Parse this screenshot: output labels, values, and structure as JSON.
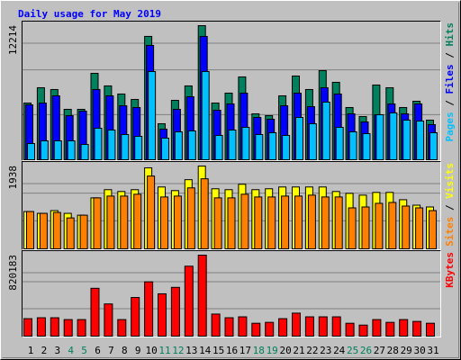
{
  "chart_data": [
    {
      "type": "bar",
      "title": "Daily usage for May 2019",
      "title_color": "#0000ff",
      "ylim": [
        0,
        12214
      ],
      "yticks": [
        12214
      ],
      "legend_separator": " / ",
      "series": [
        {
          "name": "Hits",
          "color": "#00805c",
          "values": [
            5166,
            6560,
            6396,
            4592,
            4592,
            7872,
            6724,
            5986,
            5494,
            11234,
            3280,
            5412,
            6724,
            12214,
            5166,
            6068,
            7544,
            4182,
            4018,
            5822,
            7626,
            6396,
            8118,
            7052,
            4756,
            3936,
            6806,
            6560,
            4756,
            5330,
            3608
          ]
        },
        {
          "name": "Files",
          "color": "#0000ff",
          "values": [
            5002,
            5166,
            5822,
            4018,
            4428,
            6396,
            5822,
            4920,
            4756,
            10414,
            2788,
            4592,
            5740,
            11234,
            4510,
            5084,
            6068,
            3854,
            3690,
            4920,
            6068,
            4838,
            6560,
            5986,
            4182,
            3444,
            4100,
            5084,
            4182,
            5084,
            3198
          ]
        },
        {
          "name": "Pages",
          "color": "#00c0ff",
          "values": [
            1476,
            1722,
            1722,
            1722,
            1394,
            2870,
            2706,
            2296,
            2132,
            8036,
            1968,
            2542,
            2624,
            8036,
            2214,
            2706,
            2952,
            2296,
            2460,
            2214,
            3854,
            3280,
            5248,
            2952,
            2542,
            2378,
            4100,
            4264,
            3608,
            3526,
            2460
          ]
        }
      ]
    },
    {
      "type": "bar",
      "ylim": [
        0,
        1938
      ],
      "yticks": [
        1938
      ],
      "legend_separator": " / ",
      "series": [
        {
          "name": "Visits",
          "color": "#ffff00",
          "values": [
            873,
            831,
            895,
            831,
            788,
            1193,
            1385,
            1342,
            1385,
            1896,
            1448,
            1363,
            1619,
            1938,
            1406,
            1385,
            1512,
            1385,
            1406,
            1448,
            1448,
            1448,
            1448,
            1342,
            1299,
            1257,
            1321,
            1321,
            1150,
            1022,
            980
          ]
        },
        {
          "name": "Sites",
          "color": "#ff8000",
          "values": [
            873,
            831,
            852,
            724,
            788,
            1193,
            1235,
            1235,
            1278,
            1704,
            1214,
            1235,
            1427,
            1640,
            1193,
            1193,
            1278,
            1214,
            1214,
            1235,
            1235,
            1257,
            1214,
            1214,
            959,
            980,
            1065,
            1086,
            1001,
            959,
            895
          ]
        }
      ]
    },
    {
      "type": "bar",
      "ylim": [
        0,
        820183
      ],
      "yticks": [
        820183
      ],
      "categories": [
        "1",
        "2",
        "3",
        "4",
        "5",
        "6",
        "7",
        "8",
        "9",
        "10",
        "11",
        "12",
        "13",
        "14",
        "15",
        "16",
        "17",
        "18",
        "19",
        "20",
        "21",
        "22",
        "23",
        "24",
        "25",
        "26",
        "27",
        "28",
        "29",
        "30",
        "31"
      ],
      "category_colors": [
        "#000000",
        "#000000",
        "#000000",
        "#00805c",
        "#00805c",
        "#000000",
        "#000000",
        "#000000",
        "#000000",
        "#000000",
        "#00805c",
        "#00805c",
        "#000000",
        "#000000",
        "#000000",
        "#000000",
        "#000000",
        "#00805c",
        "#00805c",
        "#000000",
        "#000000",
        "#000000",
        "#000000",
        "#000000",
        "#00805c",
        "#00805c",
        "#000000",
        "#000000",
        "#000000",
        "#000000",
        "#000000"
      ],
      "series": [
        {
          "name": "KBytes",
          "color": "#ff0000",
          "values": [
            177080,
            186400,
            186400,
            167760,
            167760,
            484640,
            326200,
            167760,
            391440,
            549880,
            428720,
            493960,
            708320,
            820183,
            223680,
            186400,
            195720,
            130480,
            139800,
            177080,
            233000,
            195720,
            195720,
            195720,
            130480,
            111840,
            167760,
            139800,
            167760,
            149120,
            130480
          ]
        }
      ]
    }
  ]
}
